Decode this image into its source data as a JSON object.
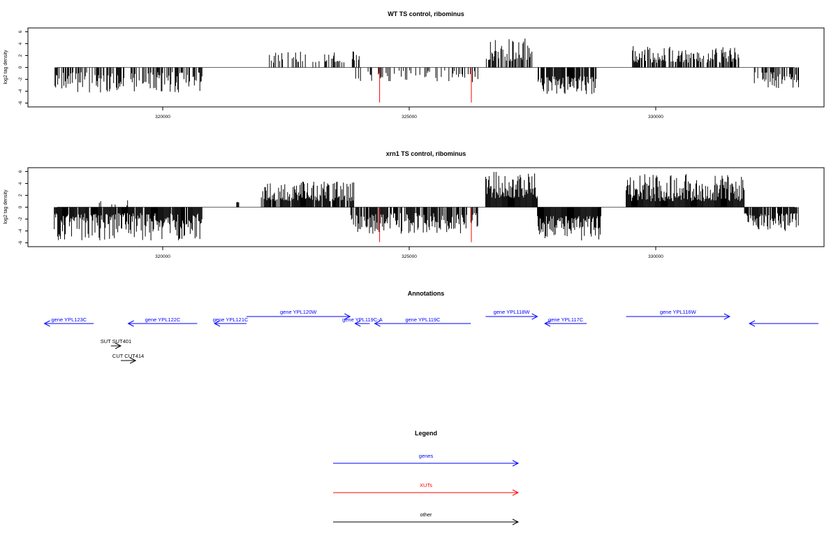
{
  "chart_data": [
    {
      "type": "bar",
      "title": "WT TS control, ribominus",
      "ylabel": "log2 tag density",
      "xlim": [
        317500,
        333300
      ],
      "ylim": [
        -6,
        6.5
      ],
      "yticks": [
        -6,
        -4,
        -2,
        0,
        2,
        4,
        6
      ],
      "xticks": [
        320000,
        325000,
        330000
      ],
      "xtick_labels": [
        "320000",
        "325000",
        "330000"
      ],
      "bar_color": "#000000",
      "highlight_color": "#ff0000",
      "highlights": [
        {
          "x": 324400,
          "y": -5.9
        },
        {
          "x": 326260,
          "y": -5.9
        }
      ],
      "segments": [
        {
          "x0": 317800,
          "x1": 320800,
          "sign": -1,
          "min": 0.8,
          "max": 4.3,
          "density": 0.55
        },
        {
          "x0": 322150,
          "x1": 324000,
          "sign": 1,
          "min": 0.8,
          "max": 2.7,
          "density": 0.35
        },
        {
          "x0": 323900,
          "x1": 326400,
          "sign": -1,
          "min": 0.5,
          "max": 2.5,
          "density": 0.25
        },
        {
          "x0": 326550,
          "x1": 327500,
          "sign": 1,
          "min": 1.0,
          "max": 5.0,
          "density": 0.6
        },
        {
          "x0": 327600,
          "x1": 328800,
          "sign": -1,
          "min": 1.5,
          "max": 4.5,
          "density": 0.8
        },
        {
          "x0": 329500,
          "x1": 331700,
          "sign": 1,
          "min": 0.8,
          "max": 3.6,
          "density": 0.6
        },
        {
          "x0": 332000,
          "x1": 332900,
          "sign": -1,
          "min": 0.8,
          "max": 3.5,
          "density": 0.5
        }
      ]
    },
    {
      "type": "bar",
      "title": "xrn1 TS control, ribominus",
      "ylabel": "log2 tag density",
      "xlim": [
        317500,
        333300
      ],
      "ylim": [
        -6,
        6.5
      ],
      "yticks": [
        -6,
        -4,
        -2,
        0,
        2,
        4,
        6
      ],
      "xticks": [
        320000,
        325000,
        330000
      ],
      "xtick_labels": [
        "320000",
        "325000",
        "330000"
      ],
      "bar_color": "#000000",
      "highlight_color": "#ff0000",
      "highlights": [
        {
          "x": 324400,
          "y": -5.9
        },
        {
          "x": 326260,
          "y": -5.9
        }
      ],
      "segments": [
        {
          "x0": 317800,
          "x1": 320800,
          "sign": -1,
          "min": 1.0,
          "max": 5.6,
          "density": 0.9
        },
        {
          "x0": 318700,
          "x1": 319300,
          "sign": 1,
          "min": 0.3,
          "max": 1.4,
          "density": 0.2
        },
        {
          "x0": 321500,
          "x1": 321550,
          "sign": 1,
          "min": 0.8,
          "max": 1.0,
          "density": 1.0
        },
        {
          "x0": 322000,
          "x1": 323900,
          "sign": 1,
          "min": 1.0,
          "max": 4.3,
          "density": 0.85
        },
        {
          "x0": 323800,
          "x1": 326400,
          "sign": -1,
          "min": 1.0,
          "max": 4.5,
          "density": 0.8
        },
        {
          "x0": 326550,
          "x1": 327600,
          "sign": 1,
          "min": 1.5,
          "max": 6.1,
          "density": 1.0
        },
        {
          "x0": 327600,
          "x1": 328900,
          "sign": -1,
          "min": 1.5,
          "max": 5.6,
          "density": 1.0
        },
        {
          "x0": 329400,
          "x1": 331800,
          "sign": 1,
          "min": 1.0,
          "max": 5.6,
          "density": 1.0
        },
        {
          "x0": 331800,
          "x1": 332900,
          "sign": -1,
          "min": 1.0,
          "max": 4.0,
          "density": 0.85
        }
      ]
    }
  ],
  "annotations": {
    "title": "Annotations",
    "items": [
      {
        "label": "gene YPL123C",
        "start": 318600,
        "end": 317600,
        "strand": "-",
        "row": "lower",
        "color": "#0000ff"
      },
      {
        "label": "gene YPL122C",
        "start": 320700,
        "end": 319300,
        "strand": "-",
        "row": "lower",
        "color": "#0000ff"
      },
      {
        "label": "gene YPL121C",
        "start": 321700,
        "end": 321050,
        "strand": "-",
        "row": "lower",
        "color": "#0000ff"
      },
      {
        "label": "gene YPL120W",
        "start": 321700,
        "end": 323800,
        "strand": "+",
        "row": "upper",
        "color": "#0000ff"
      },
      {
        "label": "gene YPL119C-A",
        "start": 324200,
        "end": 323900,
        "strand": "-",
        "row": "lower",
        "color": "#0000ff"
      },
      {
        "label": "gene YPL119C",
        "start": 326250,
        "end": 324300,
        "strand": "-",
        "row": "lower",
        "color": "#0000ff"
      },
      {
        "label": "gene YPL118W",
        "start": 326550,
        "end": 327600,
        "strand": "+",
        "row": "upper",
        "color": "#0000ff"
      },
      {
        "label": "gene YPL117C",
        "start": 328600,
        "end": 327750,
        "strand": "-",
        "row": "lower",
        "color": "#0000ff"
      },
      {
        "label": "gene YPL116W",
        "start": 329400,
        "end": 331500,
        "strand": "+",
        "row": "upper",
        "color": "#0000ff"
      },
      {
        "label": "",
        "start": 333300,
        "end": 331900,
        "strand": "-",
        "row": "lower",
        "color": "#0000ff"
      },
      {
        "label": "SUT SUT401",
        "start": 318950,
        "end": 319150,
        "strand": "+",
        "row": "sut",
        "color": "#000000"
      },
      {
        "label": "CUT CUT414",
        "start": 319150,
        "end": 319450,
        "strand": "+",
        "row": "cut",
        "color": "#000000"
      }
    ]
  },
  "legend": {
    "title": "Legend",
    "entries": [
      {
        "label": "genes",
        "color": "#0000ff"
      },
      {
        "label": "XUTs",
        "color": "#ff0000"
      },
      {
        "label": "other",
        "color": "#000000"
      }
    ]
  }
}
